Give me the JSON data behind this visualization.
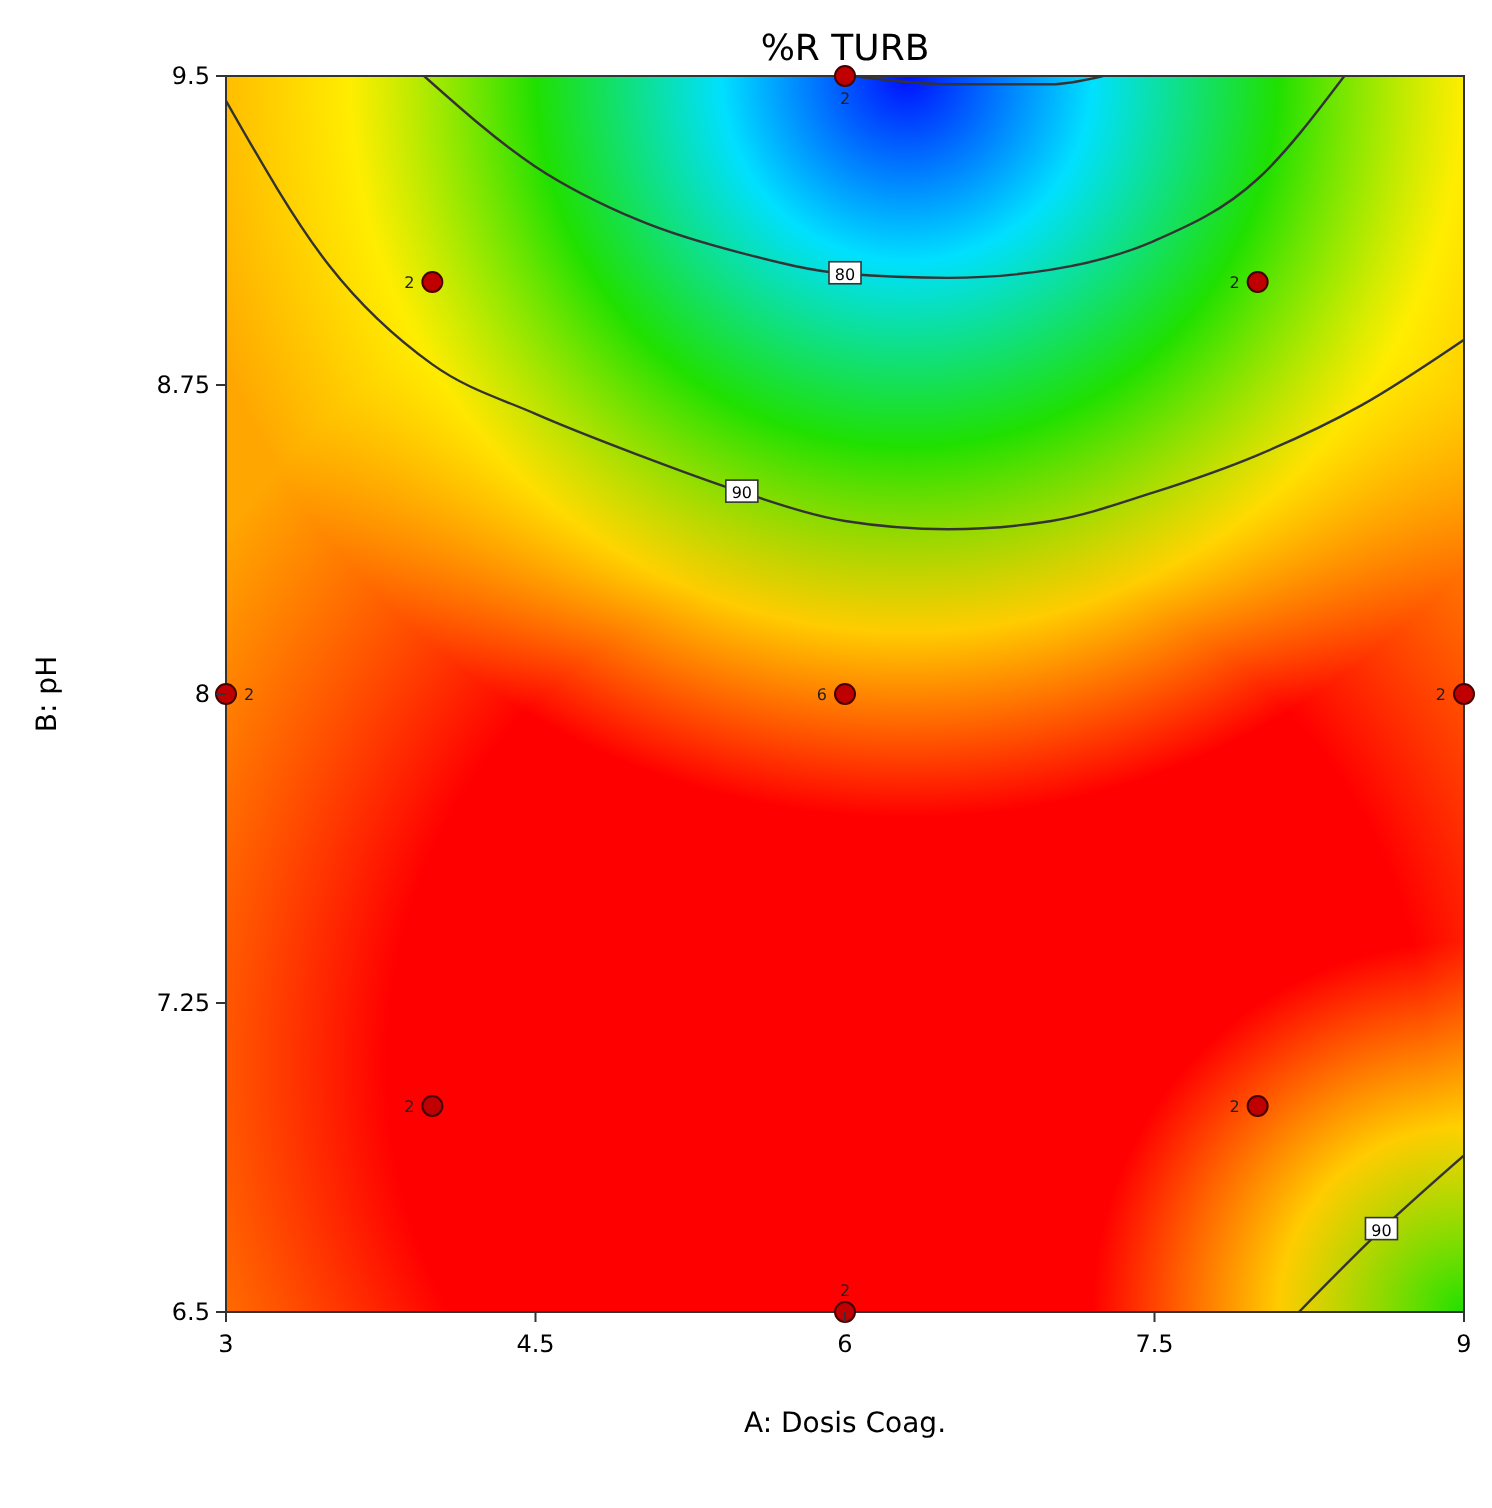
{
  "chart_data": {
    "type": "scatter",
    "title": "%R TURB",
    "xlabel": "A: Dosis Coag.",
    "ylabel": "B: pH",
    "xlim": [
      3,
      9
    ],
    "ylim": [
      6.5,
      9.5
    ],
    "xticks": [
      3,
      4.5,
      6,
      7.5,
      9
    ],
    "yticks": [
      6.5,
      7.25,
      8,
      8.75,
      9.5
    ],
    "grid": false,
    "series": [
      {
        "type": "line",
        "name": "80",
        "color": "#333333",
        "x": [
          3.96,
          4.5,
          5,
          5.5,
          6,
          6.5,
          7,
          7.5,
          8,
          8.42
        ],
        "values": [
          9.5,
          9.28,
          9.15,
          9.07,
          9.02,
          9.01,
          9.03,
          9.1,
          9.25,
          9.5
        ]
      },
      {
        "type": "line",
        "color": "#333333",
        "x": [
          6.04,
          6.5,
          7,
          7.25
        ],
        "values": [
          9.5,
          9.48,
          9.48,
          9.5
        ]
      },
      {
        "type": "line",
        "name": "90",
        "color": "#333333",
        "x": [
          3,
          3.5,
          4,
          4.5,
          5,
          5.5,
          6,
          6.5,
          7,
          7.5,
          8,
          8.5,
          9
        ],
        "values": [
          9.44,
          9.04,
          8.8,
          8.68,
          8.58,
          8.49,
          8.42,
          8.4,
          8.42,
          8.49,
          8.58,
          8.7,
          8.86
        ]
      },
      {
        "type": "line",
        "name": "90",
        "color": "#333333",
        "x": [
          8.2,
          8.6,
          9
        ],
        "values": [
          6.5,
          6.7,
          6.88
        ]
      },
      {
        "color": "#c00000",
        "marker": "circle",
        "x": [
          6,
          4,
          8,
          3,
          6,
          9,
          4,
          8,
          6
        ],
        "values": [
          9.5,
          9,
          9,
          8,
          8,
          8,
          7,
          7,
          6.5
        ]
      }
    ],
    "annotations": [
      {
        "text": "2",
        "x": 6,
        "y": 9.5
      },
      {
        "text": "2",
        "x": 4,
        "y": 9
      },
      {
        "text": "2",
        "x": 8,
        "y": 9
      },
      {
        "text": "2",
        "x": 3,
        "y": 8
      },
      {
        "text": "6",
        "x": 6,
        "y": 8
      },
      {
        "text": "2",
        "x": 9,
        "y": 8
      },
      {
        "text": "2",
        "x": 4,
        "y": 7
      },
      {
        "text": "2",
        "x": 8,
        "y": 7
      },
      {
        "text": "2",
        "x": 6,
        "y": 6.5
      }
    ]
  }
}
